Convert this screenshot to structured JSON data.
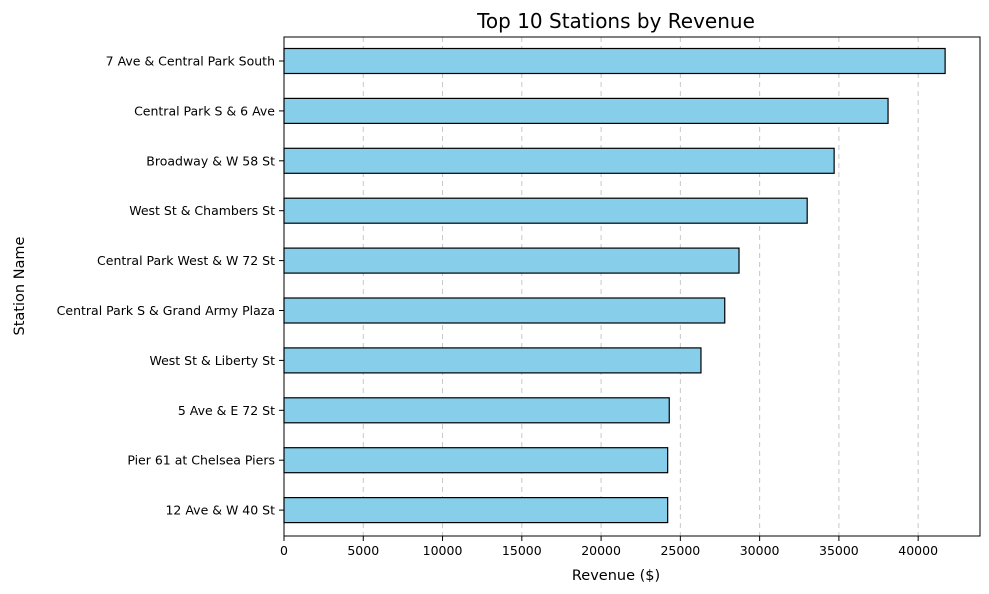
{
  "chart_data": {
    "type": "bar",
    "orientation": "horizontal",
    "title": "Top 10 Stations by Revenue",
    "xlabel": "Revenue ($)",
    "ylabel": "Station Name",
    "xlim": [
      0,
      43900
    ],
    "xticks": [
      0,
      5000,
      10000,
      15000,
      20000,
      25000,
      30000,
      35000,
      40000
    ],
    "grid": "x dashed",
    "legend": "none",
    "bar_color": "#87ceeb",
    "bar_edge_color": "#000000",
    "grid_color": "#c8c8c8",
    "categories": [
      "7 Ave & Central Park South",
      "Central Park S & 6 Ave",
      "Broadway & W 58 St",
      "West St & Chambers St",
      "Central Park West & W 72 St",
      "Central Park S & Grand Army Plaza",
      "West St & Liberty St",
      "5 Ave & E 72 St",
      "Pier 61 at Chelsea Piers",
      "12 Ave & W 40 St"
    ],
    "values": [
      41700,
      38100,
      34700,
      33000,
      28700,
      27800,
      26300,
      24300,
      24200,
      24200
    ]
  }
}
